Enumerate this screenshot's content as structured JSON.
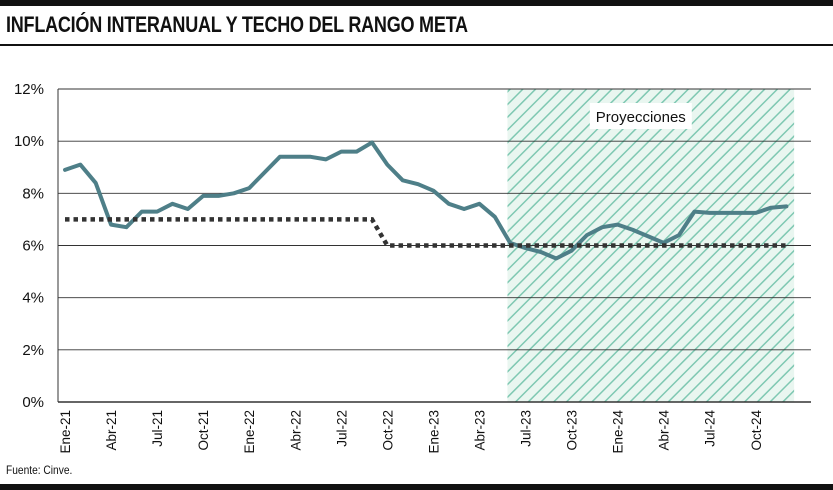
{
  "header": {
    "title": "INFLACIÓN INTERANUAL Y TECHO DEL RANGO META"
  },
  "footer": {
    "source": "Fuente: Cinve."
  },
  "colors": {
    "inflation_line": "#4e7f88",
    "ceiling_line": "#333333",
    "projection_hatch": "#7fc8b2",
    "grid": "#333333"
  },
  "chart_data": {
    "type": "line",
    "title": "INFLACIÓN INTERANUAL Y TECHO DEL RANGO META",
    "y_ticks": [
      "0%",
      "2%",
      "4%",
      "6%",
      "8%",
      "10%",
      "12%"
    ],
    "ylim": [
      0,
      12
    ],
    "x_tick_labels": [
      "Ene-21",
      "Abr-21",
      "Jul-21",
      "Oct-21",
      "Ene-22",
      "Abr-22",
      "Jul-22",
      "Oct-22",
      "Ene-23",
      "Abr-23",
      "Jul-23",
      "Oct-23",
      "Ene-24",
      "Abr-24",
      "Jul-24",
      "Oct-24"
    ],
    "x": [
      "Ene-21",
      "Feb-21",
      "Mar-21",
      "Abr-21",
      "May-21",
      "Jun-21",
      "Jul-21",
      "Ago-21",
      "Sep-21",
      "Oct-21",
      "Nov-21",
      "Dic-21",
      "Ene-22",
      "Feb-22",
      "Mar-22",
      "Abr-22",
      "May-22",
      "Jun-22",
      "Jul-22",
      "Ago-22",
      "Sep-22",
      "Oct-22",
      "Nov-22",
      "Dic-22",
      "Ene-23",
      "Feb-23",
      "Mar-23",
      "Abr-23",
      "May-23",
      "Jun-23",
      "Jul-23",
      "Ago-23",
      "Sep-23",
      "Oct-23",
      "Nov-23",
      "Dic-23",
      "Ene-24",
      "Feb-24",
      "Mar-24",
      "Abr-24",
      "May-24",
      "Jun-24",
      "Jul-24",
      "Ago-24",
      "Sep-24",
      "Oct-24",
      "Nov-24",
      "Dic-24"
    ],
    "grid": true,
    "projection_region": {
      "start": "Jun-23",
      "end": "Dic-24",
      "label": "Proyecciones"
    },
    "series": [
      {
        "style": "solid",
        "values": [
          8.9,
          9.1,
          8.4,
          6.8,
          6.7,
          7.3,
          7.3,
          7.6,
          7.4,
          7.9,
          7.9,
          8.0,
          8.2,
          8.8,
          9.4,
          9.4,
          9.4,
          9.3,
          9.6,
          9.6,
          9.95,
          9.1,
          8.5,
          8.35,
          8.1,
          7.6,
          7.4,
          7.6,
          7.1,
          6.1,
          5.9,
          5.75,
          5.5,
          5.8,
          6.4,
          6.7,
          6.8,
          6.6,
          6.35,
          6.1,
          6.4,
          7.3,
          7.25,
          7.25,
          7.25,
          7.25,
          7.45,
          7.5
        ]
      },
      {
        "style": "dotted",
        "values": [
          7,
          7,
          7,
          7,
          7,
          7,
          7,
          7,
          7,
          7,
          7,
          7,
          7,
          7,
          7,
          7,
          7,
          7,
          7,
          7,
          7,
          6,
          6,
          6,
          6,
          6,
          6,
          6,
          6,
          6,
          6,
          6,
          6,
          6,
          6,
          6,
          6,
          6,
          6,
          6,
          6,
          6,
          6,
          6,
          6,
          6,
          6,
          6
        ]
      }
    ]
  }
}
